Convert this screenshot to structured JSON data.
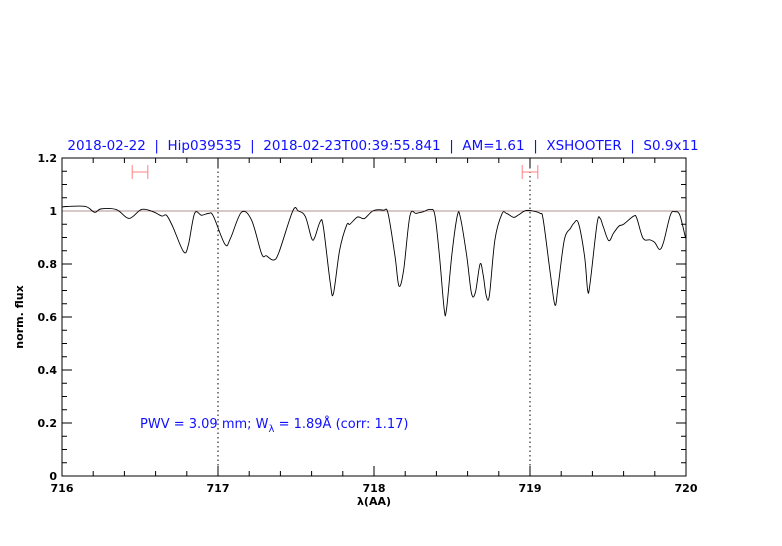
{
  "chart_data": {
    "type": "line",
    "title": "2018-02-22  |  Hip039535  |  2018-02-23T00:39:55.841  |  AM=1.61  |  XSHOOTER  |  S0.9x11",
    "xlabel": "λ(AA)",
    "ylabel": "norm. flux",
    "xlim": [
      716,
      720
    ],
    "ylim": [
      0,
      1.2
    ],
    "xticks": [
      "716",
      "717",
      "718",
      "719",
      "720"
    ],
    "yticks": [
      "0",
      "0.2",
      "0.4",
      "0.6",
      "0.8",
      "1",
      "1.2"
    ],
    "grid": false,
    "reference_line_y": 1.0,
    "dotted_vlines_x": [
      717,
      719
    ],
    "continuum_windows": [
      [
        716.45,
        716.55
      ],
      [
        718.95,
        719.05
      ]
    ],
    "annotation": {
      "pwv_text": "PWV = 3.09 mm; W",
      "w_sub": "λ",
      "w_text": " = 1.89Å (corr: 1.17)"
    },
    "colors": {
      "line": "#000000",
      "title": "#1010ff",
      "window": "#ff8080",
      "reference": "#b09090"
    },
    "series": [
      {
        "x": [
          716.0,
          716.03,
          716.15,
          716.21,
          716.25,
          716.35,
          716.43,
          716.51,
          716.585,
          716.64,
          716.67,
          716.71,
          716.78,
          716.81,
          716.85,
          716.895,
          716.94,
          716.97,
          717.045,
          717.08,
          717.15,
          717.215,
          717.28,
          717.31,
          717.355,
          717.39,
          717.48,
          717.515,
          717.56,
          717.6,
          717.62,
          717.655,
          717.675,
          717.72,
          717.74,
          717.78,
          717.825,
          717.845,
          717.89,
          717.91,
          717.94,
          717.995,
          718.06,
          718.09,
          718.135,
          718.16,
          718.19,
          718.23,
          718.27,
          718.315,
          718.36,
          718.39,
          718.42,
          718.45,
          718.465,
          718.5,
          718.535,
          718.555,
          718.595,
          718.625,
          718.65,
          718.68,
          718.7,
          718.72,
          718.74,
          718.775,
          718.82,
          718.85,
          718.895,
          718.925,
          718.97,
          719.01,
          719.065,
          719.085,
          719.13,
          719.16,
          719.18,
          719.22,
          719.26,
          719.28,
          719.31,
          719.35,
          719.37,
          719.385,
          719.43,
          719.45,
          719.47,
          719.505,
          719.535,
          719.57,
          719.6,
          719.665,
          719.685,
          719.725,
          719.77,
          719.8,
          719.83,
          719.855,
          719.9,
          719.93,
          719.96,
          719.995,
          720.0
        ],
        "y": [
          1.015,
          1.017,
          1.017,
          0.995,
          1.008,
          1.005,
          0.972,
          1.006,
          0.997,
          0.981,
          0.984,
          0.941,
          0.846,
          0.872,
          0.991,
          0.984,
          0.991,
          0.981,
          0.874,
          0.897,
          0.995,
          0.966,
          0.838,
          0.831,
          0.815,
          0.843,
          1.001,
          1.0,
          0.979,
          0.897,
          0.9,
          0.96,
          0.941,
          0.727,
          0.689,
          0.853,
          0.947,
          0.95,
          0.976,
          0.976,
          0.972,
          1.001,
          1.003,
          0.991,
          0.828,
          0.717,
          0.777,
          0.981,
          0.991,
          0.997,
          1.006,
          0.985,
          0.828,
          0.629,
          0.63,
          0.84,
          0.985,
          0.972,
          0.828,
          0.689,
          0.693,
          0.8,
          0.758,
          0.679,
          0.683,
          0.891,
          0.989,
          0.991,
          0.976,
          0.985,
          1.001,
          1.001,
          0.991,
          0.966,
          0.765,
          0.645,
          0.714,
          0.891,
          0.935,
          0.953,
          0.955,
          0.828,
          0.699,
          0.727,
          0.953,
          0.972,
          0.94,
          0.888,
          0.916,
          0.943,
          0.95,
          0.981,
          0.972,
          0.897,
          0.891,
          0.881,
          0.855,
          0.88,
          0.985,
          0.997,
          0.985,
          0.904,
          0.9
        ]
      }
    ]
  }
}
